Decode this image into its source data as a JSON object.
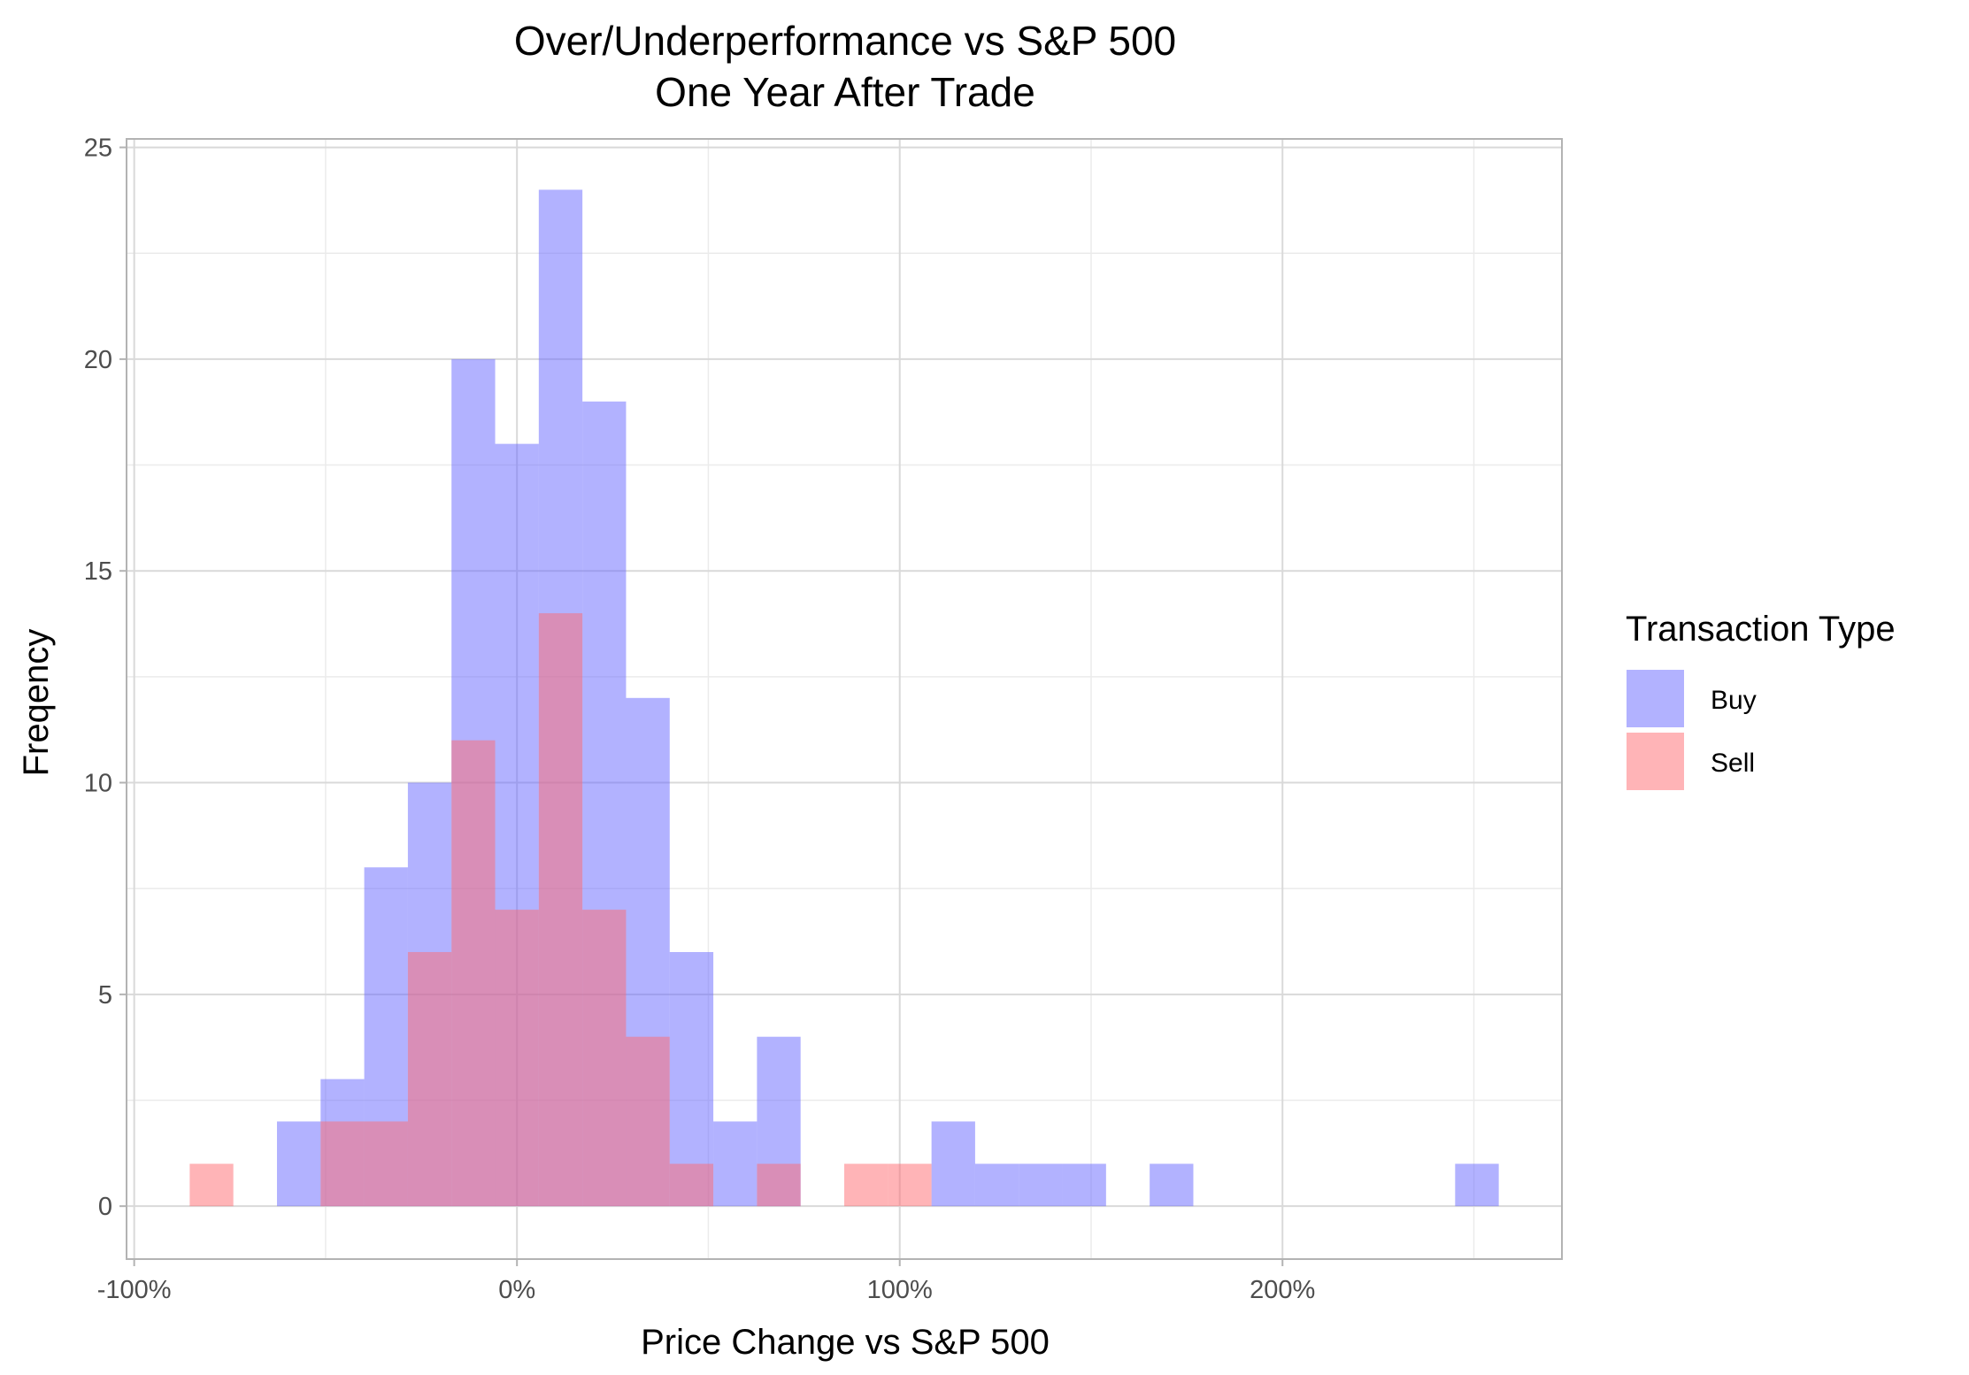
{
  "chart_data": {
    "type": "bar",
    "subtype": "histogram",
    "title": "Over/Underperformance vs S&P 500",
    "subtitle": "One Year After Trade",
    "xlabel": "Price Change vs S&P 500",
    "ylabel": "Freqency",
    "xlim": [
      -1.02,
      2.73
    ],
    "ylim": [
      -1.25,
      25.2
    ],
    "x_ticks": [
      {
        "value": -1.0,
        "label": "-100%"
      },
      {
        "value": 0.0,
        "label": "0%"
      },
      {
        "value": 1.0,
        "label": "100%"
      },
      {
        "value": 2.0,
        "label": "200%"
      }
    ],
    "y_ticks": [
      {
        "value": 0,
        "label": "0"
      },
      {
        "value": 5,
        "label": "5"
      },
      {
        "value": 10,
        "label": "10"
      },
      {
        "value": 15,
        "label": "15"
      },
      {
        "value": 20,
        "label": "20"
      },
      {
        "value": 25,
        "label": "25"
      }
    ],
    "grid": true,
    "bin_width": 0.114,
    "legend": {
      "title": "Transaction Type",
      "position": "right"
    },
    "series": [
      {
        "name": "Buy",
        "color": "#6666ff",
        "opacity": 0.5,
        "bins": [
          {
            "x0": -0.627,
            "x1": -0.513,
            "count": 2
          },
          {
            "x0": -0.513,
            "x1": -0.399,
            "count": 3
          },
          {
            "x0": -0.399,
            "x1": -0.285,
            "count": 8
          },
          {
            "x0": -0.285,
            "x1": -0.171,
            "count": 10
          },
          {
            "x0": -0.171,
            "x1": -0.057,
            "count": 20
          },
          {
            "x0": -0.057,
            "x1": 0.057,
            "count": 18
          },
          {
            "x0": 0.057,
            "x1": 0.171,
            "count": 24
          },
          {
            "x0": 0.171,
            "x1": 0.285,
            "count": 19
          },
          {
            "x0": 0.285,
            "x1": 0.399,
            "count": 12
          },
          {
            "x0": 0.399,
            "x1": 0.513,
            "count": 6
          },
          {
            "x0": 0.513,
            "x1": 0.627,
            "count": 2
          },
          {
            "x0": 0.627,
            "x1": 0.741,
            "count": 4
          },
          {
            "x0": 1.083,
            "x1": 1.197,
            "count": 2
          },
          {
            "x0": 1.197,
            "x1": 1.311,
            "count": 1
          },
          {
            "x0": 1.311,
            "x1": 1.425,
            "count": 1
          },
          {
            "x0": 1.425,
            "x1": 1.539,
            "count": 1
          },
          {
            "x0": 1.653,
            "x1": 1.767,
            "count": 1
          },
          {
            "x0": 2.451,
            "x1": 2.565,
            "count": 1
          }
        ]
      },
      {
        "name": "Sell",
        "color": "#ff6a6f",
        "opacity": 0.5,
        "bins": [
          {
            "x0": -0.855,
            "x1": -0.741,
            "count": 1
          },
          {
            "x0": -0.513,
            "x1": -0.399,
            "count": 2
          },
          {
            "x0": -0.399,
            "x1": -0.285,
            "count": 2
          },
          {
            "x0": -0.285,
            "x1": -0.171,
            "count": 6
          },
          {
            "x0": -0.171,
            "x1": -0.057,
            "count": 11
          },
          {
            "x0": -0.057,
            "x1": 0.057,
            "count": 7
          },
          {
            "x0": 0.057,
            "x1": 0.171,
            "count": 14
          },
          {
            "x0": 0.171,
            "x1": 0.285,
            "count": 7
          },
          {
            "x0": 0.285,
            "x1": 0.399,
            "count": 4
          },
          {
            "x0": 0.399,
            "x1": 0.513,
            "count": 1
          },
          {
            "x0": 0.627,
            "x1": 0.741,
            "count": 1
          },
          {
            "x0": 0.855,
            "x1": 0.969,
            "count": 1
          },
          {
            "x0": 0.969,
            "x1": 1.083,
            "count": 1
          }
        ]
      }
    ]
  }
}
